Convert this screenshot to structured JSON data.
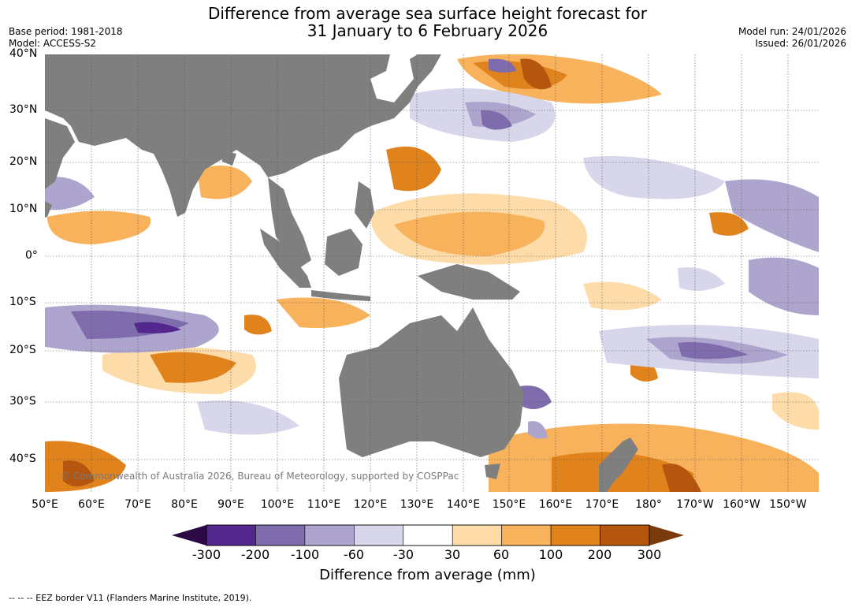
{
  "title_line1": "Difference from average sea surface height forecast for",
  "title_line2": "31 January to 6 February 2026",
  "base_period": "Base period: 1981-2018",
  "model": "Model: ACCESS-S2",
  "model_run": "Model run: 24/01/2026",
  "issued": "Issued: 26/01/2026",
  "lat_labels": [
    "40°N",
    "30°N",
    "20°N",
    "10°N",
    "0°",
    "10°S",
    "20°S",
    "30°S",
    "40°S"
  ],
  "lon_labels": [
    "50°E",
    "60°E",
    "70°E",
    "80°E",
    "90°E",
    "100°E",
    "110°E",
    "120°E",
    "130°E",
    "140°E",
    "150°E",
    "160°E",
    "170°E",
    "180°",
    "170°W",
    "160°W",
    "150°W"
  ],
  "colorbar": {
    "ticks": [
      "-300",
      "-200",
      "-100",
      "-60",
      "-30",
      "30",
      "60",
      "100",
      "200",
      "300"
    ],
    "colors": [
      "#54278f",
      "#7e6cad",
      "#aea5cf",
      "#d7d6ea",
      "#ffffff",
      "#fedcaa",
      "#f7b25b",
      "#e0831d",
      "#b5560e"
    ],
    "under_color": "#2d0a45",
    "over_color": "#7a3a0c",
    "title": "Difference from average (mm)"
  },
  "land_color": "#7f7f7f",
  "copyright": "© Commonwealth of Australia 2026, Bureau of Meteorology, supported by COSPPac",
  "footnote": "--  --  -- EEZ border V11 (Flanders Marine Institute, 2019)."
}
